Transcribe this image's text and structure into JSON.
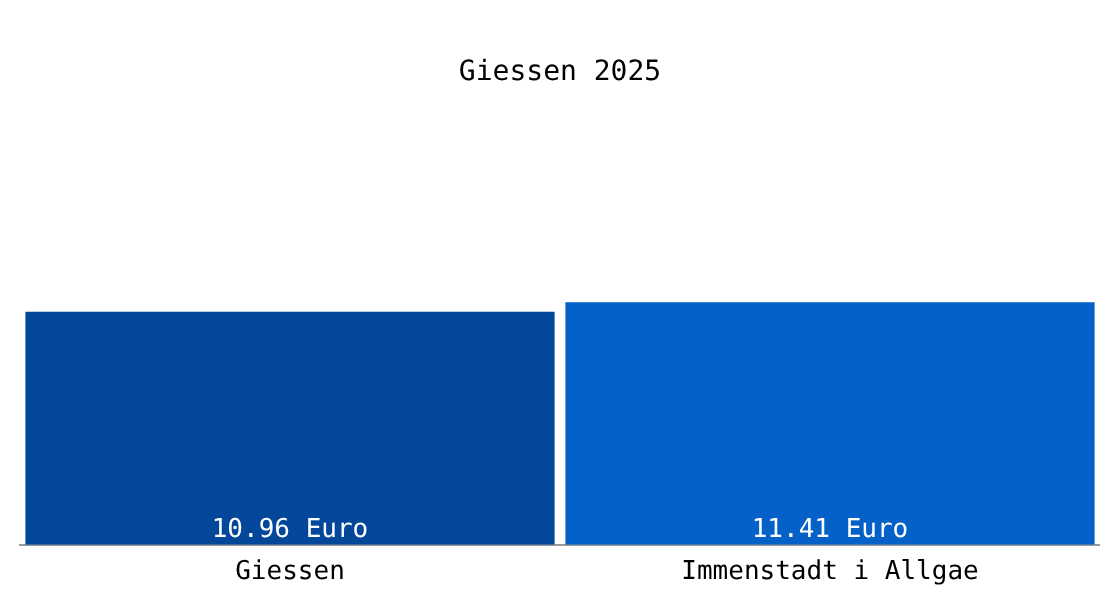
{
  "chart_data": {
    "type": "bar",
    "title": "Giessen 2025",
    "categories": [
      "Giessen",
      "Immenstadt i Allgae"
    ],
    "values": [
      10.96,
      11.41
    ],
    "colors": [
      "#03479a",
      "#0461c7"
    ],
    "value_labels": [
      "10.96 Euro",
      "11.41 Euro"
    ],
    "grid": false,
    "legend": false,
    "tick_labels": "x"
  }
}
